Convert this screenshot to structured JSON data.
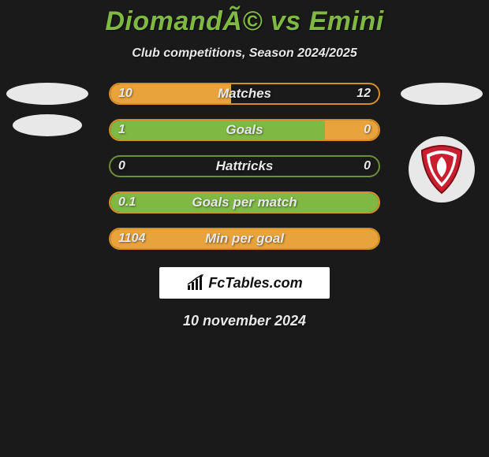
{
  "title": "DiomandÃ© vs Emini",
  "subtitle": "Club competitions, Season 2024/2025",
  "date": "10 november 2024",
  "brand": "FcTables.com",
  "colors": {
    "background": "#1a1a1a",
    "accent_green": "#7fb842",
    "accent_orange": "#e8a33d",
    "border_orange": "#d68f28",
    "text_light": "#e8e8e8",
    "box_white": "#ffffff",
    "shield_red": "#c91f2e",
    "shield_border": "#7a1018"
  },
  "stats": [
    {
      "label": "Matches",
      "left_value": "10",
      "right_value": "12",
      "left_pct": 45,
      "right_pct": 55,
      "left_color": "#e8a33d",
      "right_color": "transparent",
      "border_color": "#d68f28"
    },
    {
      "label": "Goals",
      "left_value": "1",
      "right_value": "0",
      "left_pct": 80,
      "right_pct": 20,
      "left_color": "#7fb842",
      "right_color": "#e8a33d",
      "border_color": "#d68f28"
    },
    {
      "label": "Hattricks",
      "left_value": "0",
      "right_value": "0",
      "left_pct": 0,
      "right_pct": 0,
      "left_color": "transparent",
      "right_color": "transparent",
      "border_color": "#6b8e39"
    },
    {
      "label": "Goals per match",
      "left_value": "0.1",
      "right_value": "",
      "left_pct": 100,
      "right_pct": 0,
      "left_color": "#7fb842",
      "right_color": "transparent",
      "border_color": "#d68f28"
    },
    {
      "label": "Min per goal",
      "left_value": "1104",
      "right_value": "",
      "left_pct": 100,
      "right_pct": 0,
      "left_color": "#e8a33d",
      "right_color": "transparent",
      "border_color": "#d68f28"
    }
  ]
}
